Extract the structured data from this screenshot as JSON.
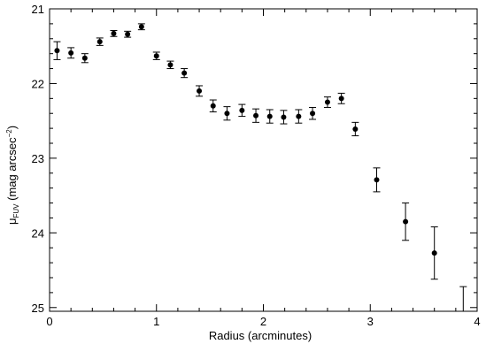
{
  "chart_data": {
    "type": "scatter",
    "xlabel": "Radius (arcminutes)",
    "ylabel_symbol": "μ",
    "ylabel_subscript": "FUV",
    "ylabel_units": " (mag arcsec",
    "ylabel_exponent": "−2",
    "ylabel_close": ")",
    "xlim": [
      0,
      4
    ],
    "ylim": [
      25.05,
      21.0
    ],
    "y_inverted": true,
    "grid": false,
    "x_ticks": [
      0,
      1,
      2,
      3,
      4
    ],
    "y_ticks": [
      21,
      22,
      23,
      24,
      25
    ],
    "x_minor_step": 0.2,
    "y_minor_step": 0.2,
    "series": [
      {
        "points": [
          {
            "x": 0.07,
            "y": 21.56,
            "err": 0.12
          },
          {
            "x": 0.2,
            "y": 21.59,
            "err": 0.07
          },
          {
            "x": 0.33,
            "y": 21.66,
            "err": 0.06
          },
          {
            "x": 0.47,
            "y": 21.44,
            "err": 0.05
          },
          {
            "x": 0.6,
            "y": 21.33,
            "err": 0.04
          },
          {
            "x": 0.73,
            "y": 21.34,
            "err": 0.04
          },
          {
            "x": 0.86,
            "y": 21.24,
            "err": 0.04
          },
          {
            "x": 1.0,
            "y": 21.63,
            "err": 0.05
          },
          {
            "x": 1.13,
            "y": 21.75,
            "err": 0.05
          },
          {
            "x": 1.26,
            "y": 21.86,
            "err": 0.06
          },
          {
            "x": 1.4,
            "y": 22.1,
            "err": 0.07
          },
          {
            "x": 1.53,
            "y": 22.3,
            "err": 0.08
          },
          {
            "x": 1.66,
            "y": 22.4,
            "err": 0.09
          },
          {
            "x": 1.8,
            "y": 22.36,
            "err": 0.08
          },
          {
            "x": 1.93,
            "y": 22.43,
            "err": 0.09
          },
          {
            "x": 2.06,
            "y": 22.44,
            "err": 0.09
          },
          {
            "x": 2.19,
            "y": 22.45,
            "err": 0.09
          },
          {
            "x": 2.33,
            "y": 22.44,
            "err": 0.09
          },
          {
            "x": 2.46,
            "y": 22.4,
            "err": 0.08
          },
          {
            "x": 2.6,
            "y": 22.25,
            "err": 0.07
          },
          {
            "x": 2.73,
            "y": 22.2,
            "err": 0.07
          },
          {
            "x": 2.86,
            "y": 22.61,
            "err": 0.09
          },
          {
            "x": 3.06,
            "y": 23.29,
            "err": 0.16
          },
          {
            "x": 3.33,
            "y": 23.85,
            "err": 0.25
          },
          {
            "x": 3.6,
            "y": 24.27,
            "err": 0.35
          },
          {
            "x": 3.87,
            "y": null,
            "err_low": 24.72
          }
        ]
      }
    ]
  }
}
